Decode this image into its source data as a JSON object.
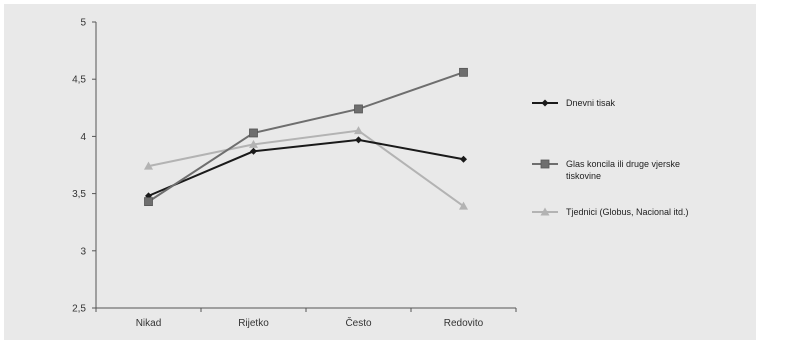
{
  "chart_data": {
    "type": "line",
    "title": "",
    "xlabel": "",
    "ylabel": "",
    "categories": [
      "Nikad",
      "Rijetko",
      "Često",
      "Redovito"
    ],
    "ylim": [
      2.5,
      5
    ],
    "yticks": [
      "2,5",
      "3",
      "3,5",
      "4",
      "4,5",
      "5"
    ],
    "ytick_values": [
      2.5,
      3,
      3.5,
      4,
      4.5,
      5
    ],
    "grid": false,
    "legend_position": "right",
    "series": [
      {
        "name": "Dnevni tisak",
        "values": [
          3.48,
          3.87,
          3.97,
          3.8
        ],
        "color": "#1a1a1a",
        "marker": "diamond"
      },
      {
        "name": "Glas koncila ili druge vjerske tiskovine",
        "legend_lines": [
          "Glas koncila ili druge vjerske",
          "tiskovine"
        ],
        "values": [
          3.43,
          4.03,
          4.24,
          4.56
        ],
        "color": "#6e6e6e",
        "marker": "square"
      },
      {
        "name": "Tjednici (Globus, Nacional itd.)",
        "values": [
          3.74,
          3.93,
          4.05,
          3.39
        ],
        "color": "#b3b3b3",
        "marker": "triangle"
      }
    ]
  }
}
